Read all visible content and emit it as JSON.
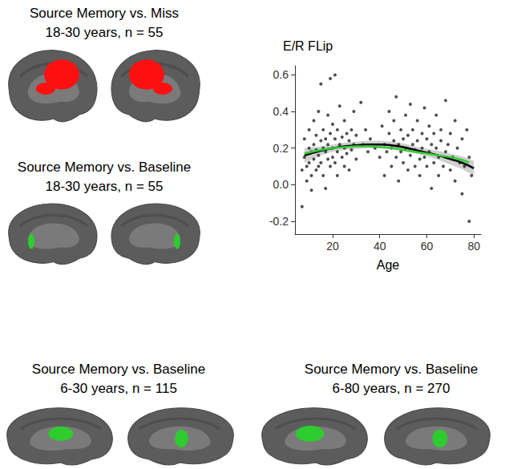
{
  "panels": [
    {
      "title": "Source Memory vs. Miss",
      "subtitle": "18-30 years, n = 55",
      "color": "#ff1010"
    },
    {
      "title": "Source Memory vs. Baseline",
      "subtitle": "18-30 years, n = 55",
      "color": "#2ecc2e"
    },
    {
      "title": "Source Memory vs. Baseline",
      "subtitle": "6-30 years, n = 115",
      "color": "#2ecc2e"
    },
    {
      "title": "Source Memory vs. Baseline",
      "subtitle": "6-80 years, n = 270",
      "color": "#2ecc2e"
    }
  ],
  "chart_data": {
    "type": "scatter",
    "title": "E/R FLip",
    "x_label": "Age",
    "xlim": [
      4,
      83
    ],
    "xticks": [
      20,
      40,
      60,
      80
    ],
    "ylim": [
      -0.27,
      0.65
    ],
    "yticks": [
      -0.2,
      {
        "value": 0,
        "label": "0.0"
      },
      0.2,
      0.4,
      0.6
    ],
    "grid": false,
    "series": [
      {
        "type": "scatter",
        "color": "#222222",
        "marker": "circle",
        "x": [
          7,
          7,
          8,
          8,
          9,
          9,
          10,
          10,
          10,
          11,
          11,
          11,
          12,
          12,
          12,
          13,
          13,
          13,
          14,
          14,
          14,
          15,
          15,
          15,
          16,
          16,
          16,
          17,
          17,
          17,
          18,
          18,
          18,
          19,
          19,
          19,
          20,
          20,
          20,
          21,
          21,
          21,
          22,
          22,
          22,
          23,
          23,
          24,
          24,
          25,
          25,
          25,
          26,
          26,
          27,
          27,
          28,
          28,
          29,
          29,
          30,
          30,
          32,
          33,
          34,
          35,
          36,
          38,
          40,
          41,
          42,
          42,
          43,
          44,
          44,
          45,
          45,
          46,
          46,
          47,
          47,
          48,
          48,
          49,
          49,
          50,
          50,
          51,
          51,
          52,
          52,
          53,
          53,
          54,
          54,
          55,
          55,
          56,
          56,
          57,
          57,
          58,
          58,
          59,
          59,
          60,
          60,
          61,
          61,
          62,
          62,
          63,
          63,
          64,
          64,
          65,
          65,
          66,
          66,
          67,
          68,
          68,
          69,
          70,
          70,
          71,
          72,
          72,
          73,
          74,
          75,
          75,
          76,
          77,
          78,
          78,
          79
        ],
        "values": [
          0.08,
          -0.12,
          0.15,
          0.25,
          0.1,
          0.02,
          0.2,
          0.3,
          0.12,
          0.18,
          -0.03,
          0.05,
          0.22,
          0.14,
          0.35,
          0.08,
          0.27,
          0.19,
          0.1,
          0.4,
          0.16,
          0.24,
          0.12,
          0.55,
          0.2,
          0.05,
          0.3,
          0.18,
          0.25,
          -0.02,
          0.14,
          0.38,
          0.22,
          0.28,
          0.1,
          0.58,
          0.2,
          0.33,
          0.15,
          0.25,
          0.12,
          0.6,
          0.18,
          0.3,
          0.05,
          0.22,
          0.43,
          0.15,
          0.26,
          0.2,
          0.1,
          0.35,
          0.28,
          0.17,
          0.24,
          0.08,
          0.3,
          0.19,
          0.22,
          0.4,
          0.14,
          0.27,
          0.45,
          0.22,
          0.3,
          0.18,
          0.25,
          0.2,
          0.15,
          0.32,
          0.22,
          0.05,
          0.18,
          0.28,
          0.4,
          0.2,
          0.1,
          0.35,
          0.24,
          0.15,
          0.48,
          0.22,
          0.02,
          0.3,
          0.18,
          0.25,
          0.12,
          0.38,
          0.2,
          0.08,
          0.27,
          0.16,
          0.44,
          0.22,
          0.3,
          0.1,
          0.19,
          0.35,
          0.24,
          0.14,
          0.05,
          0.28,
          0.2,
          0.42,
          0.15,
          0.25,
          0.1,
          0.32,
          0.18,
          0.22,
          -0.02,
          0.28,
          0.12,
          0.38,
          0.2,
          0.15,
          0.05,
          0.24,
          0.3,
          0.1,
          0.46,
          0.18,
          0.22,
          0.08,
          0.28,
          0.15,
          0.35,
          0.02,
          0.2,
          0.12,
          0.25,
          -0.05,
          0.1,
          0.3,
          -0.2,
          0.15,
          0.05
        ]
      },
      {
        "type": "line",
        "color": "#000000",
        "line_style": "solid",
        "x": [
          8,
          15,
          20,
          25,
          30,
          35,
          40,
          45,
          50,
          55,
          60,
          65,
          70,
          75,
          80
        ],
        "values": [
          0.16,
          0.185,
          0.2,
          0.21,
          0.215,
          0.22,
          0.22,
          0.215,
          0.205,
          0.19,
          0.175,
          0.16,
          0.14,
          0.12,
          0.09
        ],
        "lower": [
          0.12,
          0.16,
          0.18,
          0.19,
          0.195,
          0.2,
          0.2,
          0.195,
          0.185,
          0.17,
          0.155,
          0.135,
          0.11,
          0.085,
          0.05
        ],
        "upper": [
          0.2,
          0.21,
          0.22,
          0.23,
          0.235,
          0.24,
          0.24,
          0.235,
          0.225,
          0.21,
          0.195,
          0.185,
          0.17,
          0.155,
          0.13
        ]
      },
      {
        "type": "line",
        "color": "#33cc33",
        "line_style": "solid",
        "x": [
          8,
          15,
          20,
          25,
          30,
          35,
          40,
          45,
          50,
          55,
          60,
          65,
          70,
          75,
          78
        ],
        "values": [
          0.17,
          0.19,
          0.2,
          0.205,
          0.21,
          0.21,
          0.205,
          0.2,
          0.19,
          0.18,
          0.17,
          0.16,
          0.15,
          0.135,
          0.12
        ]
      }
    ]
  }
}
